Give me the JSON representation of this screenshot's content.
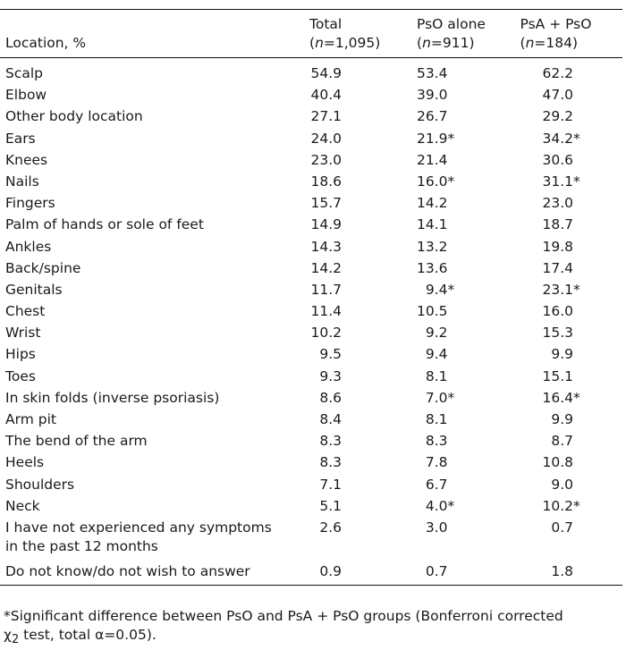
{
  "header": {
    "location": "Location, %",
    "col1_line1": "Total",
    "col1_line2_n": "n",
    "col1_line2_rest": "=1,095)",
    "col2_line1": "PsO alone",
    "col2_line2_n": "n",
    "col2_line2_rest": "=911)",
    "col3_line1": "PsA + PsO",
    "col3_line2_n": "n",
    "col3_line2_rest": "=184)"
  },
  "rows": [
    {
      "label": "Scalp",
      "total": "54.9",
      "pso": "53.4",
      "psa": "62.2"
    },
    {
      "label": "Elbow",
      "total": "40.4",
      "pso": "39.0",
      "psa": "47.0"
    },
    {
      "label": "Other body location",
      "total": "27.1",
      "pso": "26.7",
      "psa": "29.2"
    },
    {
      "label": "Ears",
      "total": "24.0",
      "pso": "21.9*",
      "psa": "34.2*"
    },
    {
      "label": "Knees",
      "total": "23.0",
      "pso": "21.4",
      "psa": "30.6"
    },
    {
      "label": "Nails",
      "total": "18.6",
      "pso": "16.0*",
      "psa": "31.1*"
    },
    {
      "label": "Fingers",
      "total": "15.7",
      "pso": "14.2",
      "psa": "23.0"
    },
    {
      "label": "Palm of hands or sole of feet",
      "total": "14.9",
      "pso": "14.1",
      "psa": "18.7"
    },
    {
      "label": "Ankles",
      "total": "14.3",
      "pso": "13.2",
      "psa": "19.8"
    },
    {
      "label": "Back/spine",
      "total": "14.2",
      "pso": "13.6",
      "psa": "17.4"
    },
    {
      "label": "Genitals",
      "total": "11.7",
      "pso": "9.4*",
      "psa": "23.1*"
    },
    {
      "label": "Chest",
      "total": "11.4",
      "pso": "10.5",
      "psa": "16.0"
    },
    {
      "label": "Wrist",
      "total": "10.2",
      "pso": "9.2",
      "psa": "15.3"
    },
    {
      "label": "Hips",
      "total": "9.5",
      "pso": "9.4",
      "psa": "9.9"
    },
    {
      "label": "Toes",
      "total": "9.3",
      "pso": "8.1",
      "psa": "15.1"
    },
    {
      "label": "In skin folds (inverse psoriasis)",
      "total": "8.6",
      "pso": "7.0*",
      "psa": "16.4*"
    },
    {
      "label": "Arm pit",
      "total": "8.4",
      "pso": "8.1",
      "psa": "9.9"
    },
    {
      "label": "The bend of the arm",
      "total": "8.3",
      "pso": "8.3",
      "psa": "8.7"
    },
    {
      "label": "Heels",
      "total": "8.3",
      "pso": "7.8",
      "psa": "10.8"
    },
    {
      "label": "Shoulders",
      "total": "7.1",
      "pso": "6.7",
      "psa": "9.0"
    },
    {
      "label": "Neck",
      "total": "5.1",
      "pso": "4.0*",
      "psa": "10.2*"
    }
  ],
  "row_two_line": {
    "label_line1": "I have not experienced any symptoms",
    "label_line2": "in the past 12 months",
    "total": "2.6",
    "pso": "3.0",
    "psa": "0.7"
  },
  "row_last": {
    "label": "Do not know/do not wish to answer",
    "total": "0.9",
    "pso": "0.7",
    "psa": "1.8"
  },
  "footnote": {
    "line1": "*Significant difference between PsO and PsA + PsO groups (Bonferroni corrected",
    "chi": "χ",
    "chi_sub": "2",
    "line2_rest": " test, total α=0.05)."
  }
}
